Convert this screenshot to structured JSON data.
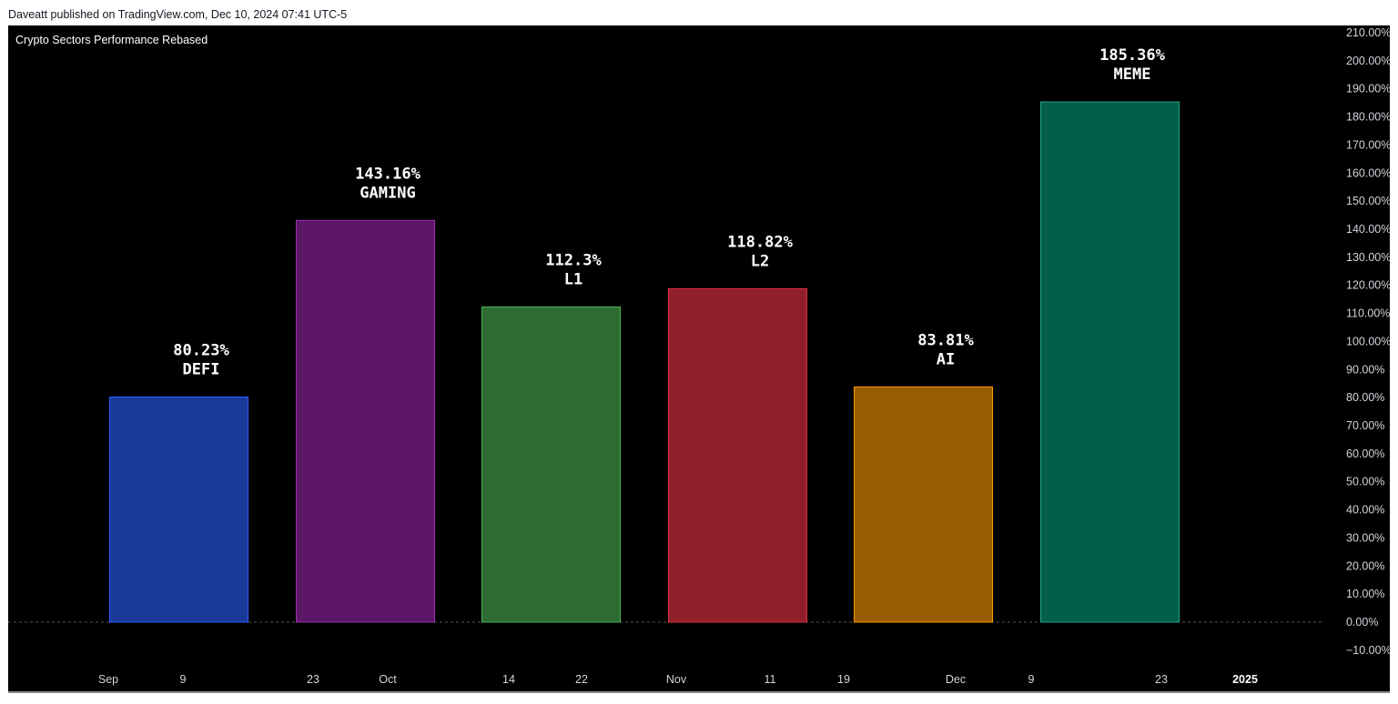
{
  "header": {
    "publisher": "Daveatt published on TradingView.com, Dec 10, 2024 07:41 UTC-5"
  },
  "chart_data": {
    "type": "bar",
    "title": "Crypto Sectors Performance Rebased",
    "categories": [
      "DEFI",
      "GAMING",
      "L1",
      "L2",
      "AI",
      "MEME"
    ],
    "values": [
      80.23,
      143.16,
      112.3,
      118.82,
      83.81,
      185.36
    ],
    "data_labels": [
      "80.23%",
      "143.16%",
      "112.3%",
      "118.82%",
      "83.81%",
      "185.36%"
    ],
    "colors": [
      {
        "fill": "#1a3a9a",
        "stroke": "#2e5cff"
      },
      {
        "fill": "#5c1766",
        "stroke": "#9c2fb0"
      },
      {
        "fill": "#2e6b33",
        "stroke": "#4caf50"
      },
      {
        "fill": "#8f1f2a",
        "stroke": "#e0303f"
      },
      {
        "fill": "#995c00",
        "stroke": "#ff9800"
      },
      {
        "fill": "#045e4c",
        "stroke": "#1da88a"
      }
    ],
    "ylim": [
      -10,
      210
    ],
    "yticks": [
      -10,
      0,
      10,
      20,
      30,
      40,
      50,
      60,
      70,
      80,
      90,
      100,
      110,
      120,
      130,
      140,
      150,
      160,
      170,
      180,
      190,
      200,
      210
    ],
    "ytick_labels": [
      "−10.00%",
      "0.00%",
      "10.00%",
      "20.00%",
      "30.00%",
      "40.00%",
      "50.00%",
      "60.00%",
      "70.00%",
      "80.00%",
      "90.00%",
      "100.00%",
      "110.00%",
      "120.00%",
      "130.00%",
      "140.00%",
      "150.00%",
      "160.00%",
      "170.00%",
      "180.00%",
      "190.00%",
      "200.00%",
      "210.00%"
    ],
    "xtick_labels": [
      "Sep",
      "9",
      "23",
      "Oct",
      "14",
      "22",
      "Nov",
      "11",
      "19",
      "Dec",
      "9",
      "23",
      "2025"
    ],
    "xlabel": "",
    "ylabel": "",
    "grid": false,
    "baseline": 0
  }
}
